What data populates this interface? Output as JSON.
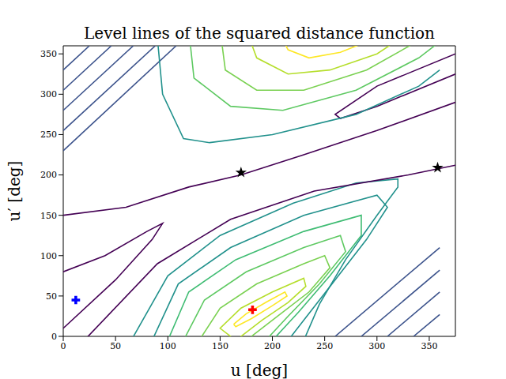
{
  "chart_data": {
    "type": "contour",
    "title": "Level lines of the squared distance function",
    "x_label": "u [deg]",
    "y_label": "u′ [deg]",
    "xlim": [
      0,
      375
    ],
    "ylim": [
      0,
      360
    ],
    "xticks": [
      0,
      50,
      100,
      150,
      200,
      250,
      300,
      350
    ],
    "yticks": [
      0,
      50,
      100,
      150,
      200,
      250,
      300,
      350
    ],
    "lines": [
      {
        "color": "#fde725",
        "x": [
          163,
          175,
          195,
          212,
          214,
          200,
          180,
          165,
          163
        ],
        "y": [
          15,
          28,
          43,
          55,
          50,
          38,
          22,
          12,
          15
        ]
      },
      {
        "color": "#b5de2b",
        "x": [
          165,
          150,
          170,
          200,
          230,
          232,
          215,
          190,
          165
        ],
        "y": [
          -5,
          10,
          35,
          55,
          72,
          62,
          42,
          20,
          -5
        ]
      },
      {
        "color": "#7ad151",
        "x": [
          130,
          150,
          185,
          230,
          250,
          255,
          235,
          205,
          175
        ],
        "y": [
          -5,
          35,
          65,
          90,
          100,
          85,
          55,
          25,
          -5
        ]
      },
      {
        "color": "#5ec962",
        "x": [
          115,
          135,
          175,
          230,
          265,
          270,
          245,
          215,
          190
        ],
        "y": [
          -5,
          45,
          80,
          110,
          125,
          105,
          65,
          25,
          -10
        ]
      },
      {
        "color": "#3fbc73",
        "x": [
          100,
          120,
          165,
          230,
          285,
          285,
          255,
          225,
          200
        ],
        "y": [
          -5,
          55,
          95,
          130,
          150,
          125,
          75,
          30,
          -5
        ]
      },
      {
        "color": "#21918c",
        "x": [
          85,
          110,
          160,
          230,
          300,
          310,
          290,
          260,
          230,
          215
        ],
        "y": [
          -5,
          65,
          110,
          150,
          175,
          160,
          120,
          70,
          20,
          -5
        ]
      },
      {
        "color": "#21918c",
        "x": [
          65,
          100,
          150,
          220,
          280,
          320,
          320,
          300,
          270,
          245,
          230
        ],
        "y": [
          -5,
          75,
          125,
          165,
          190,
          195,
          185,
          150,
          95,
          40,
          -5
        ]
      },
      {
        "color": "#440154",
        "x": [
          20,
          90,
          160,
          240,
          330,
          375
        ],
        "y": [
          -5,
          90,
          145,
          180,
          200,
          212
        ]
      },
      {
        "color": "#440154",
        "x": [
          0,
          50,
          85,
          95,
          80,
          40,
          0
        ],
        "y": [
          10,
          70,
          120,
          140,
          130,
          100,
          80
        ]
      },
      {
        "color": "#440154",
        "x": [
          0,
          60,
          120,
          170,
          230,
          300,
          375
        ],
        "y": [
          150,
          160,
          185,
          200,
          225,
          255,
          290
        ]
      },
      {
        "color": "#440154",
        "x": [
          375,
          300,
          260,
          265,
          300,
          375
        ],
        "y": [
          350,
          310,
          275,
          270,
          285,
          325
        ]
      },
      {
        "color": "#3b528b",
        "x": [
          260,
          360
        ],
        "y": [
          0,
          110
        ]
      },
      {
        "color": "#3b528b",
        "x": [
          285,
          360
        ],
        "y": [
          0,
          82
        ]
      },
      {
        "color": "#3b528b",
        "x": [
          310,
          360
        ],
        "y": [
          0,
          55
        ]
      },
      {
        "color": "#3b528b",
        "x": [
          335,
          360
        ],
        "y": [
          0,
          27
        ]
      },
      {
        "color": "#3b528b",
        "x": [
          0,
          108
        ],
        "y": [
          230,
          360
        ]
      },
      {
        "color": "#3b528b",
        "x": [
          0,
          88
        ],
        "y": [
          255,
          360
        ]
      },
      {
        "color": "#3b528b",
        "x": [
          0,
          67
        ],
        "y": [
          280,
          360
        ]
      },
      {
        "color": "#3b528b",
        "x": [
          0,
          46
        ],
        "y": [
          305,
          360
        ]
      },
      {
        "color": "#3b528b",
        "x": [
          0,
          25
        ],
        "y": [
          330,
          360
        ]
      },
      {
        "color": "#21918c",
        "x": [
          90,
          95,
          115,
          140,
          200,
          280,
          340,
          360
        ],
        "y": [
          370,
          300,
          245,
          240,
          250,
          275,
          310,
          330
        ]
      },
      {
        "color": "#5ec962",
        "x": [
          120,
          125,
          160,
          210,
          280,
          340,
          365
        ],
        "y": [
          380,
          320,
          285,
          280,
          305,
          345,
          370
        ]
      },
      {
        "color": "#7ad151",
        "x": [
          150,
          155,
          185,
          230,
          290,
          345,
          360
        ],
        "y": [
          380,
          330,
          305,
          305,
          330,
          370,
          380
        ]
      },
      {
        "color": "#b5de2b",
        "x": [
          175,
          185,
          215,
          255,
          300,
          335
        ],
        "y": [
          380,
          345,
          325,
          330,
          350,
          380
        ]
      },
      {
        "color": "#fde725",
        "x": [
          205,
          215,
          235,
          265,
          300,
          315
        ],
        "y": [
          380,
          355,
          345,
          352,
          370,
          380
        ]
      }
    ],
    "markers": [
      {
        "x": 12,
        "y": 45,
        "color": "#0000ff",
        "marker": "plus"
      },
      {
        "x": 181,
        "y": 33,
        "color": "#ff0000",
        "marker": "plus"
      },
      {
        "x": 170,
        "y": 203,
        "color": "#000000",
        "marker": "star"
      },
      {
        "x": 358,
        "y": 209,
        "color": "#000000",
        "marker": "star"
      }
    ]
  }
}
